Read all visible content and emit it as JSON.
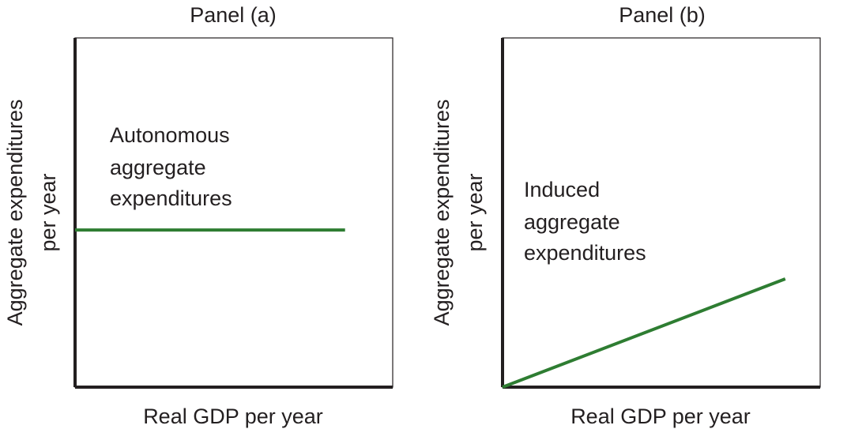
{
  "chart_data": [
    {
      "type": "line",
      "title": "Panel (a)",
      "xlabel": "Real GDP per year",
      "ylabel": [
        "Aggregate expenditures",
        "per year"
      ],
      "xlim": [
        0,
        100
      ],
      "ylim": [
        0,
        100
      ],
      "grid": false,
      "series": [
        {
          "name": "Autonomous aggregate expenditures",
          "x": [
            0,
            85
          ],
          "y": [
            45,
            45
          ]
        }
      ],
      "annotation": [
        "Autonomous",
        "aggregate",
        "expenditures"
      ],
      "line_color": "#2e7d32"
    },
    {
      "type": "line",
      "title": "Panel (b)",
      "xlabel": "Real GDP per year",
      "ylabel": [
        "Aggregate expenditures",
        "per year"
      ],
      "xlim": [
        0,
        100
      ],
      "ylim": [
        0,
        100
      ],
      "grid": false,
      "series": [
        {
          "name": "Induced aggregate expenditures",
          "x": [
            0,
            89
          ],
          "y": [
            0,
            31
          ]
        }
      ],
      "annotation": [
        "Induced",
        "aggregate",
        "expenditures"
      ],
      "line_color": "#2e7d32"
    }
  ]
}
